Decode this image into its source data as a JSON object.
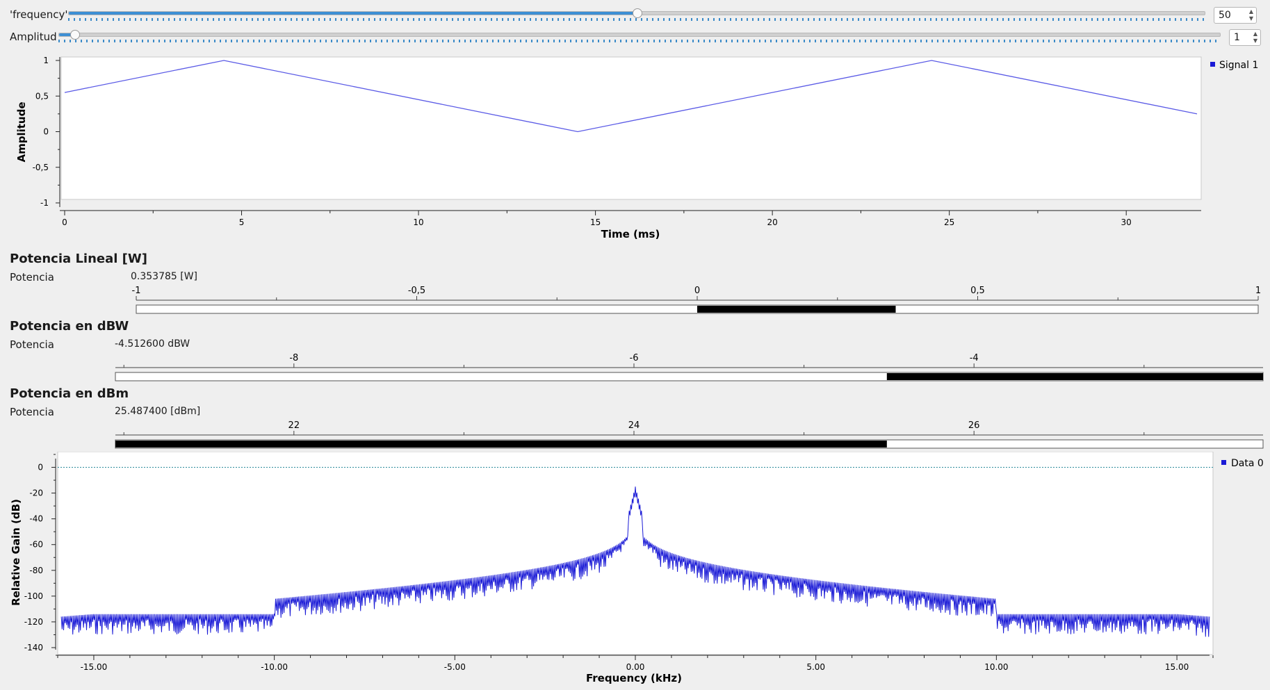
{
  "controls": {
    "frequency": {
      "label": "'frequency'",
      "value": "50",
      "fraction": 0.5
    },
    "amplitud": {
      "label": "Amplitud",
      "value": "1",
      "fraction": 0.013
    }
  },
  "time_plot": {
    "legend": "Signal 1",
    "ylabel": "Amplitude",
    "xlabel": "Time (ms)",
    "yticks": [
      "1",
      "0,5",
      "0",
      "-0,5",
      "-1"
    ],
    "xticks": [
      "0",
      "5",
      "10",
      "15",
      "20",
      "25",
      "30"
    ]
  },
  "bars": [
    {
      "title": "Potencia Lineal [W]",
      "label": "Potencia",
      "value": "0.353785 [W]",
      "ticks": [
        "-1",
        "-0,5",
        "0",
        "0,5",
        "1"
      ]
    },
    {
      "title": "Potencia en dBW",
      "label": "Potencia",
      "value": "-4.512600 dBW",
      "ticks": [
        "-8",
        "-6",
        "-4"
      ]
    },
    {
      "title": "Potencia en dBm",
      "label": "Potencia",
      "value": "25.487400 [dBm]",
      "ticks": [
        "22",
        "24",
        "26"
      ]
    }
  ],
  "freq_plot": {
    "legend": "Data 0",
    "ylabel": "Relative Gain (dB)",
    "xlabel": "Frequency (kHz)",
    "yticks": [
      "0",
      "-20",
      "-40",
      "-60",
      "-80",
      "-100",
      "-120",
      "-140"
    ],
    "xticks": [
      "-15.00",
      "-10.00",
      "-5.00",
      "0.00",
      "5.00",
      "10.00",
      "15.00"
    ]
  },
  "chart_data": [
    {
      "type": "line",
      "x": [
        0,
        4.5,
        14.5,
        24.5,
        32
      ],
      "series": [
        {
          "name": "Signal 1",
          "values": [
            0.55,
            1.0,
            0.0,
            1.0,
            0.25
          ]
        }
      ],
      "xlabel": "Time (ms)",
      "ylabel": "Amplitude",
      "xlim": [
        0,
        32
      ],
      "ylim": [
        -1,
        1
      ],
      "grid": false,
      "legend": "top-right",
      "color": "#5a5ae6"
    },
    {
      "type": "line",
      "series": [
        {
          "name": "Data 0",
          "peak_x": 0.0,
          "peak_y": -15,
          "floor_y": -122
        }
      ],
      "reference_line_y": 0,
      "xlabel": "Frequency (kHz)",
      "ylabel": "Relative Gain (dB)",
      "xlim": [
        -16,
        16
      ],
      "ylim": [
        -140,
        10
      ],
      "grid": false,
      "legend": "top-right",
      "color": "#1a1ad6"
    }
  ],
  "bar_levels": [
    {
      "min": -1,
      "max": 1,
      "level": 0.353785,
      "fill_from": 0
    },
    {
      "min": -9.05,
      "max": -2.3,
      "level": -4.5126,
      "fill_from": "level_to_max"
    },
    {
      "min": 20.95,
      "max": 27.7,
      "level": 25.4874,
      "fill_from": "min_to_level"
    }
  ]
}
